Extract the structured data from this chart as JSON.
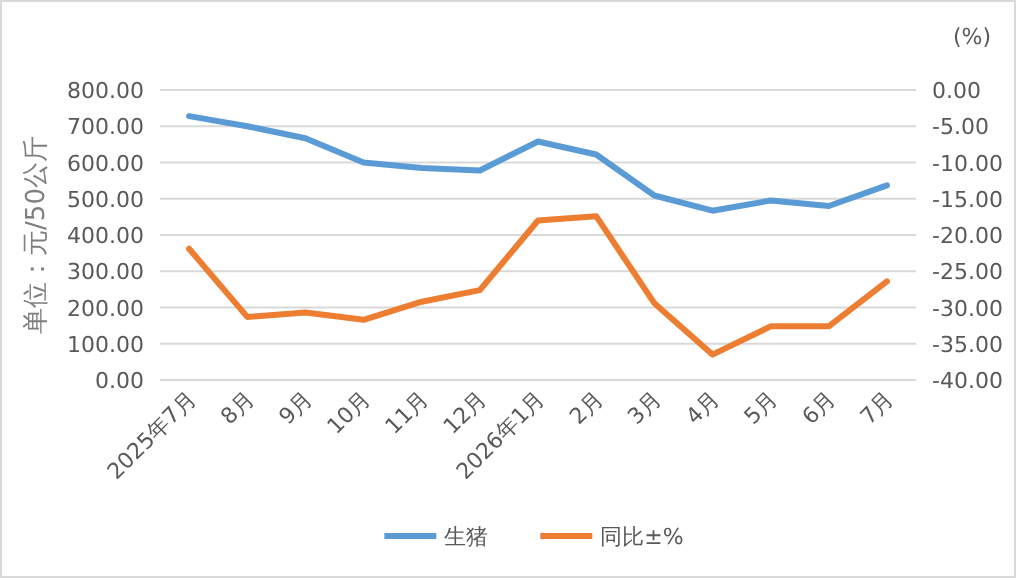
{
  "chart_data": {
    "type": "line",
    "ylabel": "单位：元/50公斤",
    "y2label": "(%)",
    "categories": [
      "2025年7月",
      "8月",
      "9月",
      "10月",
      "11月",
      "12月",
      "2026年1月",
      "2月",
      "3月",
      "4月",
      "5月",
      "6月",
      "7月"
    ],
    "series": [
      {
        "name": "生猪",
        "color": "#5b9bd5",
        "values": [
          728,
          700,
          667,
          600,
          585,
          578,
          658,
          622,
          509,
          467,
          495,
          480,
          537
        ]
      },
      {
        "name": "同比±%",
        "color": "#ed7d31",
        "axis": "y2",
        "values": [
          -21.9,
          -31.3,
          -30.7,
          -31.7,
          -29.2,
          -27.6,
          -18.0,
          -17.4,
          -29.4,
          -36.5,
          -32.6,
          -32.6,
          -26.4
        ]
      }
    ],
    "ylim": [
      0,
      800
    ],
    "yticks": [
      {
        "value": 0,
        "label": "0.00"
      },
      {
        "value": 100,
        "label": "100.00"
      },
      {
        "value": 200,
        "label": "200.00"
      },
      {
        "value": 300,
        "label": "300.00"
      },
      {
        "value": 400,
        "label": "400.00"
      },
      {
        "value": 500,
        "label": "500.00"
      },
      {
        "value": 600,
        "label": "600.00"
      },
      {
        "value": 700,
        "label": "700.00"
      },
      {
        "value": 800,
        "label": "800.00"
      }
    ],
    "y2lim": [
      -40,
      0
    ],
    "y2ticks": [
      {
        "value": 0,
        "label": "0.00"
      },
      {
        "value": -5,
        "label": "-5.00"
      },
      {
        "value": -10,
        "label": "-10.00"
      },
      {
        "value": -15,
        "label": "-15.00"
      },
      {
        "value": -20,
        "label": "-20.00"
      },
      {
        "value": -25,
        "label": "-25.00"
      },
      {
        "value": -30,
        "label": "-30.00"
      },
      {
        "value": -35,
        "label": "-35.00"
      },
      {
        "value": -40,
        "label": "-40.00"
      }
    ],
    "grid": "y",
    "legend": "bottom",
    "marker": "none",
    "line_style": "solid"
  }
}
